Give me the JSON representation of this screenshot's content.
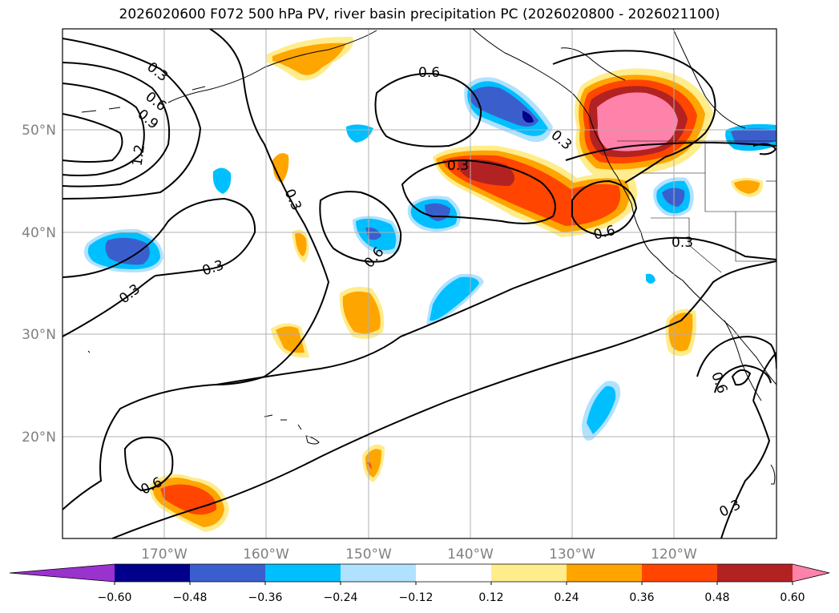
{
  "title": "2026020600 F072 500 hPa PV, river basin precipitation PC (2026020800 - 2026021100)",
  "map": {
    "lon_labels": [
      "170°W",
      "160°W",
      "150°W",
      "140°W",
      "130°W",
      "120°W"
    ],
    "lat_labels": [
      "50°N",
      "40°N",
      "30°N",
      "20°N"
    ],
    "contour_labels": [
      "0.3",
      "0.6",
      "0.9",
      "1.2",
      "0.3",
      "0.3",
      "0.3",
      "0.6",
      "0.3",
      "0.6",
      "0.6",
      "0.3",
      "0.3",
      "0.6",
      "0.6",
      "0.3"
    ]
  },
  "colorbar": {
    "colors": [
      "#9a32cd",
      "#00008b",
      "#3a5fcd",
      "#00bfff",
      "#b0e2ff",
      "#ffffff",
      "#ffec8b",
      "#ffa500",
      "#ff4500",
      "#b22222",
      "#ff82ab"
    ],
    "tick_labels": [
      "−0.60",
      "−0.48",
      "−0.36",
      "−0.24",
      "−0.12",
      "0.12",
      "0.24",
      "0.36",
      "0.48",
      "0.60"
    ]
  },
  "legend": {
    "extend": "both"
  }
}
